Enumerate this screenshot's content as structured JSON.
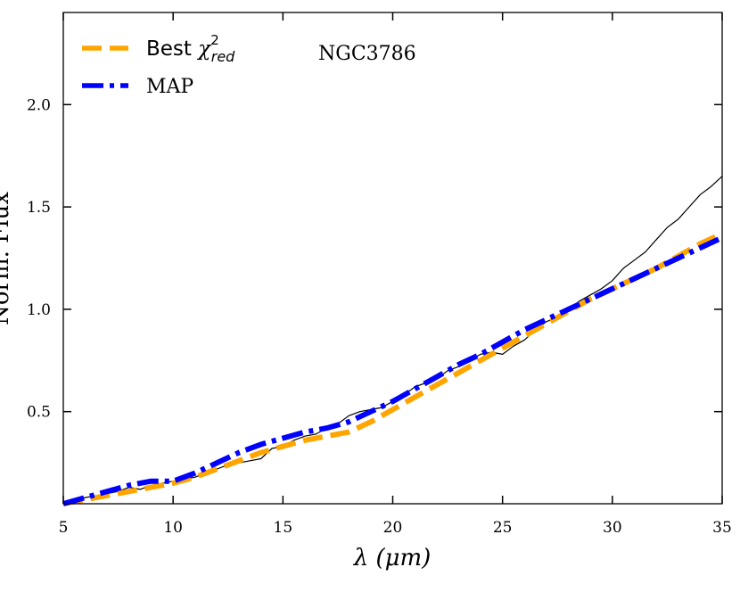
{
  "chart_data": {
    "type": "line",
    "xlabel": "λ (μm)",
    "ylabel": "Norm. Flux",
    "xlim": [
      5,
      35
    ],
    "ylim": [
      0.05,
      2.45
    ],
    "xticks": [
      5,
      10,
      15,
      20,
      25,
      30,
      35
    ],
    "yticks": [
      0.5,
      1.0,
      1.5,
      2.0
    ],
    "xtick_labels": [
      "5",
      "10",
      "15",
      "20",
      "25",
      "30",
      "35"
    ],
    "ytick_labels": [
      "0.5",
      "1.0",
      "1.5",
      "2.0"
    ],
    "annotation": "NGC3786",
    "legend": [
      {
        "label": "Best χ²_red",
        "label_main": "Best ",
        "label_sym": "χ",
        "label_sup": "2",
        "label_sub": "red",
        "color": "#FFA500",
        "style": "dashed"
      },
      {
        "label": "MAP",
        "color": "#0000FF",
        "style": "dashdot"
      }
    ],
    "legend_position": "top-left",
    "grid": false,
    "series": [
      {
        "style": "observed",
        "color": "#000000",
        "x": [
          5.0,
          5.5,
          6.0,
          6.5,
          7.0,
          7.5,
          8.0,
          8.5,
          9.0,
          9.5,
          10.0,
          10.5,
          11.0,
          11.5,
          12.0,
          12.5,
          13.0,
          13.5,
          14.0,
          14.5,
          15.0,
          15.5,
          16.0,
          16.5,
          17.0,
          17.5,
          18.0,
          18.5,
          19.0,
          19.5,
          20.0,
          20.5,
          21.0,
          21.5,
          22.0,
          22.5,
          23.0,
          23.5,
          24.0,
          24.5,
          25.0,
          25.5,
          26.0,
          26.5,
          27.0,
          27.5,
          28.0,
          28.5,
          29.0,
          29.5,
          30.0,
          30.5,
          31.0,
          31.5,
          32.0,
          32.5,
          33.0,
          33.5,
          34.0,
          34.5,
          35.0
        ],
        "y": [
          0.05,
          0.07,
          0.08,
          0.09,
          0.1,
          0.11,
          0.13,
          0.12,
          0.14,
          0.15,
          0.16,
          0.17,
          0.18,
          0.2,
          0.22,
          0.24,
          0.25,
          0.26,
          0.27,
          0.32,
          0.33,
          0.36,
          0.38,
          0.39,
          0.42,
          0.44,
          0.48,
          0.5,
          0.51,
          0.52,
          0.55,
          0.58,
          0.62,
          0.64,
          0.66,
          0.7,
          0.72,
          0.75,
          0.78,
          0.79,
          0.78,
          0.82,
          0.85,
          0.9,
          0.94,
          0.96,
          1.0,
          1.04,
          1.07,
          1.1,
          1.14,
          1.2,
          1.24,
          1.28,
          1.34,
          1.4,
          1.44,
          1.5,
          1.56,
          1.6,
          1.65
        ]
      },
      {
        "name": "Best χ²_red",
        "color": "#FFA500",
        "style": "dashed",
        "x": [
          5.0,
          6.0,
          7.0,
          8.0,
          9.0,
          10.0,
          11.0,
          12.0,
          13.0,
          14.0,
          15.0,
          16.0,
          17.0,
          18.0,
          19.0,
          20.0,
          21.0,
          22.0,
          23.0,
          24.0,
          25.0,
          26.0,
          27.0,
          28.0,
          29.0,
          30.0,
          31.0,
          32.0,
          33.0,
          34.0,
          35.0
        ],
        "y": [
          0.05,
          0.07,
          0.09,
          0.11,
          0.13,
          0.15,
          0.18,
          0.22,
          0.26,
          0.3,
          0.33,
          0.36,
          0.38,
          0.4,
          0.45,
          0.51,
          0.57,
          0.63,
          0.69,
          0.75,
          0.81,
          0.87,
          0.93,
          0.99,
          1.05,
          1.1,
          1.15,
          1.2,
          1.26,
          1.32,
          1.37
        ]
      },
      {
        "name": "MAP",
        "color": "#0000FF",
        "style": "dashdot",
        "x": [
          5.0,
          6.0,
          7.0,
          8.0,
          9.0,
          9.5,
          10.0,
          11.0,
          12.0,
          13.0,
          14.0,
          15.0,
          16.0,
          17.0,
          18.0,
          19.0,
          20.0,
          21.0,
          22.0,
          23.0,
          24.0,
          25.0,
          26.0,
          27.0,
          28.0,
          29.0,
          30.0,
          31.0,
          32.0,
          33.0,
          34.0,
          35.0
        ],
        "y": [
          0.05,
          0.08,
          0.11,
          0.14,
          0.16,
          0.16,
          0.16,
          0.2,
          0.25,
          0.3,
          0.34,
          0.37,
          0.4,
          0.42,
          0.45,
          0.5,
          0.55,
          0.61,
          0.67,
          0.73,
          0.78,
          0.84,
          0.9,
          0.95,
          1.0,
          1.05,
          1.1,
          1.15,
          1.2,
          1.25,
          1.3,
          1.35
        ]
      }
    ]
  }
}
